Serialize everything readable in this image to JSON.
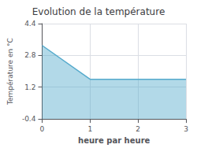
{
  "chart_data": {
    "type": "area",
    "title": "Evolution de la température",
    "xlabel": "heure par heure",
    "ylabel": "Température en °C",
    "x": [
      0,
      1,
      3
    ],
    "values": [
      3.3,
      1.6,
      1.6
    ],
    "color": "#55aacc",
    "xlim": [
      0,
      3
    ],
    "xticks": [
      0,
      1,
      2,
      3
    ],
    "ylim": [
      -0.4,
      4.4
    ],
    "yticks": [
      -0.4,
      1.2,
      2.8,
      4.4
    ],
    "grid": true
  }
}
